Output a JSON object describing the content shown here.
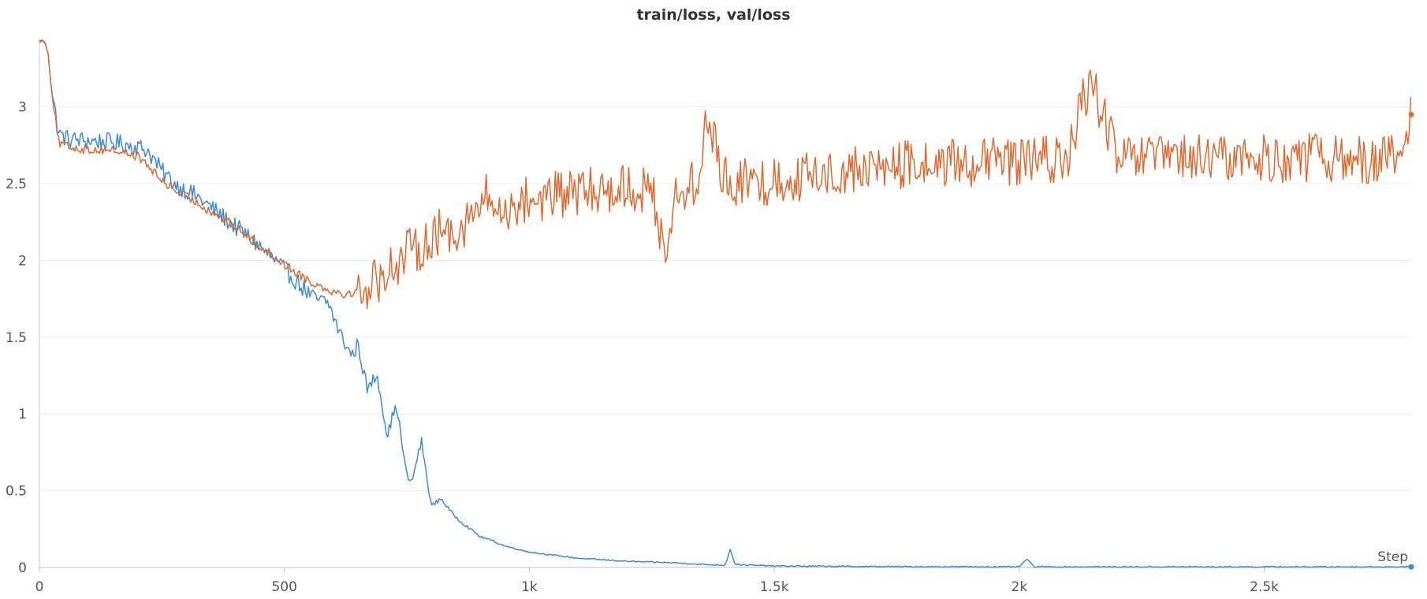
{
  "chart_data": {
    "type": "line",
    "title": "train/loss, val/loss",
    "xlabel": "Step",
    "ylabel": "",
    "xlim": [
      0,
      2800
    ],
    "ylim": [
      0,
      3.45
    ],
    "xticks": [
      0,
      500,
      1000,
      1500,
      2000,
      2500
    ],
    "xtick_labels": [
      "0",
      "500",
      "1k",
      "1.5k",
      "2k",
      "2.5k"
    ],
    "yticks": [
      0,
      0.5,
      1,
      1.5,
      2,
      2.5,
      3
    ],
    "ytick_labels": [
      "0",
      "0.5",
      "1",
      "1.5",
      "2",
      "2.5",
      "3"
    ],
    "grid": true,
    "legend": "none",
    "series": [
      {
        "color": "#3b8bd9",
        "x": [
          0,
          10,
          18,
          25,
          40,
          60,
          100,
          150,
          200,
          220,
          250,
          280,
          320,
          360,
          400,
          440,
          480,
          520,
          560,
          590,
          610,
          630,
          640,
          650,
          660,
          670,
          680,
          690,
          700,
          710,
          720,
          730,
          740,
          750,
          760,
          770,
          780,
          790,
          800,
          820,
          840,
          860,
          880,
          900,
          920,
          950,
          1000,
          1050,
          1100,
          1150,
          1200,
          1250,
          1300,
          1350,
          1400,
          1410,
          1420,
          1450,
          1500,
          1600,
          1700,
          1800,
          1900,
          2000,
          2015,
          2030,
          2100,
          2200,
          2300,
          2400,
          2500,
          2600,
          2700,
          2800
        ],
        "y": [
          3.43,
          3.43,
          3.35,
          3.1,
          2.82,
          2.79,
          2.78,
          2.77,
          2.74,
          2.72,
          2.58,
          2.49,
          2.42,
          2.32,
          2.22,
          2.12,
          2.0,
          1.88,
          1.75,
          1.72,
          1.55,
          1.42,
          1.38,
          1.46,
          1.3,
          1.15,
          1.22,
          1.25,
          1.05,
          0.85,
          0.98,
          1.05,
          0.8,
          0.6,
          0.55,
          0.7,
          0.82,
          0.6,
          0.4,
          0.45,
          0.36,
          0.3,
          0.25,
          0.2,
          0.18,
          0.14,
          0.1,
          0.08,
          0.06,
          0.05,
          0.04,
          0.035,
          0.03,
          0.02,
          0.015,
          0.12,
          0.02,
          0.015,
          0.01,
          0.008,
          0.006,
          0.005,
          0.005,
          0.004,
          0.055,
          0.005,
          0.004,
          0.004,
          0.004,
          0.004,
          0.004,
          0.004,
          0.004,
          0.004
        ]
      },
      {
        "color": "#e0692f",
        "x": [
          0,
          10,
          18,
          25,
          40,
          60,
          100,
          150,
          200,
          220,
          250,
          280,
          320,
          360,
          400,
          440,
          480,
          520,
          560,
          600,
          630,
          650,
          680,
          700,
          720,
          740,
          760,
          780,
          800,
          820,
          840,
          860,
          880,
          900,
          910,
          920,
          940,
          960,
          1000,
          1050,
          1100,
          1150,
          1200,
          1250,
          1280,
          1300,
          1350,
          1360,
          1400,
          1450,
          1500,
          1550,
          1600,
          1650,
          1700,
          1750,
          1800,
          1850,
          1900,
          1950,
          2000,
          2050,
          2100,
          2130,
          2150,
          2200,
          2250,
          2300,
          2350,
          2400,
          2450,
          2500,
          2550,
          2600,
          2650,
          2700,
          2750,
          2790,
          2800
        ],
        "y": [
          3.43,
          3.43,
          3.35,
          3.1,
          2.76,
          2.74,
          2.72,
          2.72,
          2.68,
          2.62,
          2.52,
          2.45,
          2.38,
          2.3,
          2.22,
          2.12,
          2.02,
          1.93,
          1.85,
          1.8,
          1.78,
          1.8,
          1.85,
          1.9,
          1.97,
          2.02,
          2.06,
          2.1,
          2.15,
          2.18,
          2.2,
          2.22,
          2.28,
          2.35,
          2.42,
          2.38,
          2.3,
          2.35,
          2.4,
          2.42,
          2.44,
          2.46,
          2.48,
          2.44,
          2.05,
          2.45,
          2.5,
          2.95,
          2.52,
          2.5,
          2.52,
          2.54,
          2.56,
          2.58,
          2.6,
          2.62,
          2.62,
          2.63,
          2.64,
          2.64,
          2.65,
          2.65,
          2.66,
          3.05,
          3.15,
          2.66,
          2.66,
          2.67,
          2.66,
          2.66,
          2.67,
          2.66,
          2.66,
          2.67,
          2.66,
          2.66,
          2.66,
          2.7,
          2.95
        ]
      }
    ]
  }
}
